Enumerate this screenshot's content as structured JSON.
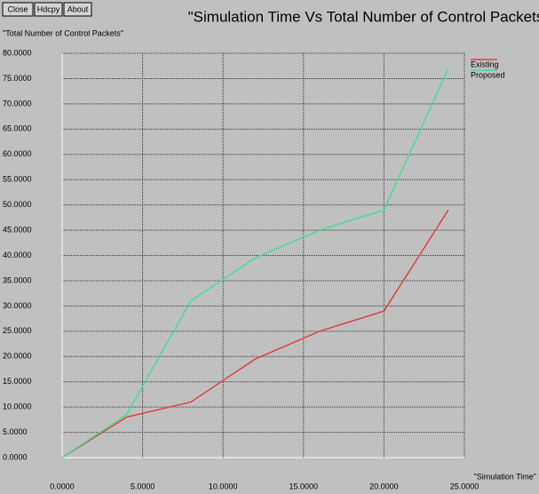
{
  "buttons": [
    "Close",
    "Hdcpy",
    "About"
  ],
  "chart_data": {
    "type": "line",
    "title": "\"Simulation Time Vs Total Number of Control Packets\"",
    "y_label": "\"Total Number of Control Packets\"",
    "x_label": "\"Simulation Time\"",
    "x": [
      0,
      4,
      8,
      12,
      16,
      20,
      24
    ],
    "series": [
      {
        "name": "Existing",
        "color": "#e04040",
        "values": [
          0,
          8,
          11,
          19.5,
          25,
          29,
          49
        ]
      },
      {
        "name": "Proposed",
        "color": "#40e090",
        "values": [
          0,
          8.5,
          31,
          39.5,
          45,
          49,
          77
        ]
      }
    ],
    "xlim": [
      0,
      25
    ],
    "xticks": [
      {
        "value": 0,
        "label": "0.0000"
      },
      {
        "value": 5,
        "label": "5.0000"
      },
      {
        "value": 10,
        "label": "10.0000"
      },
      {
        "value": 15,
        "label": "15.0000"
      },
      {
        "value": 20,
        "label": "20.0000"
      },
      {
        "value": 25,
        "label": "25.0000"
      }
    ],
    "ylim": [
      0,
      80
    ],
    "yticks": [
      {
        "value": 0,
        "label": "0.0000"
      },
      {
        "value": 5,
        "label": "5.0000"
      },
      {
        "value": 10,
        "label": "10.0000"
      },
      {
        "value": 15,
        "label": "15.0000"
      },
      {
        "value": 20,
        "label": "20.0000"
      },
      {
        "value": 25,
        "label": "25.0000"
      },
      {
        "value": 30,
        "label": "30.0000"
      },
      {
        "value": 35,
        "label": "35.0000"
      },
      {
        "value": 40,
        "label": "40.0000"
      },
      {
        "value": 45,
        "label": "45.0000"
      },
      {
        "value": 50,
        "label": "50.0000"
      },
      {
        "value": 55,
        "label": "55.0000"
      },
      {
        "value": 60,
        "label": "60.0000"
      },
      {
        "value": 65,
        "label": "65.0000"
      },
      {
        "value": 70,
        "label": "70.0000"
      },
      {
        "value": 75,
        "label": "75.0000"
      },
      {
        "value": 80,
        "label": "80.0000"
      }
    ],
    "grid": true,
    "legend": "top-right"
  }
}
